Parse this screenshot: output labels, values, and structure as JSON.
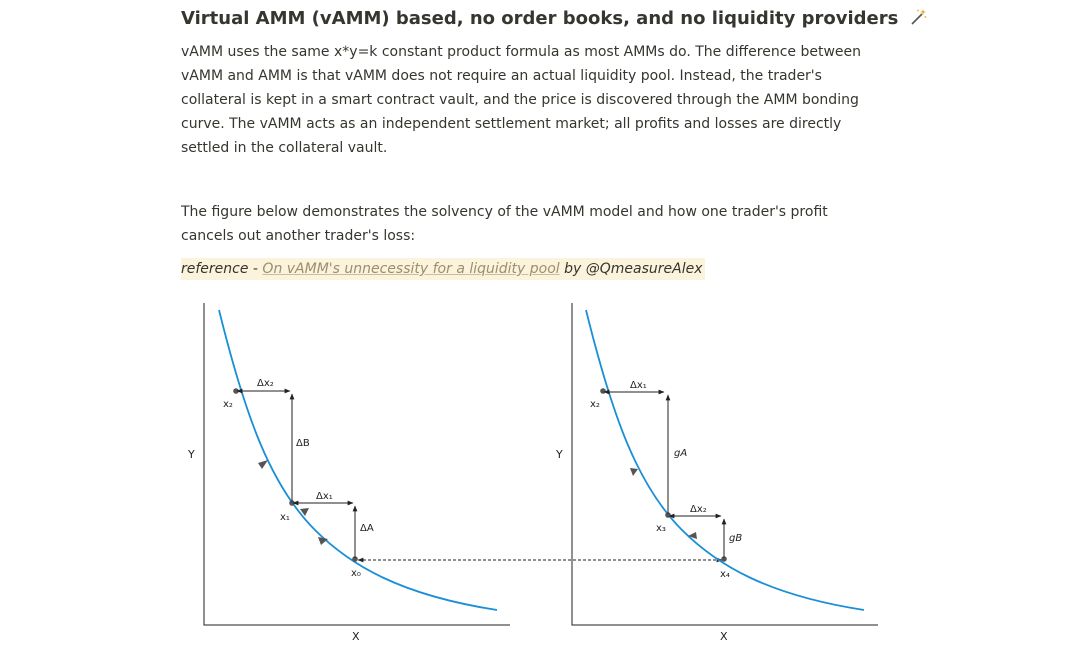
{
  "heading": {
    "title": "Virtual AMM (vAMM) based, no order books, and no liquidity providers",
    "emoji_icon": "magic-wand-icon"
  },
  "paragraph1": "vAMM uses the same x*y=k constant product formula as most AMMs do. The difference between vAMM and AMM is that vAMM does not require an actual liquidity pool. Instead, the trader's collateral is kept in a smart contract vault, and the price is discovered through the AMM bonding curve. The vAMM acts as an independent settlement market; all profits and losses are directly settled in the collateral vault.",
  "paragraph2": "The figure below demonstrates the solvency of the vAMM model and how one trader's profit cancels out another trader's loss:",
  "reference": {
    "prefix": "reference - ",
    "link_text": "On vAMM's unnecessity for a liquidity pool",
    "suffix": " by @QmeasureAlex"
  },
  "figure": {
    "left_panel": {
      "y_axis_label": "Y",
      "x_axis_label": "X",
      "labels": {
        "dx2": "Δx₂",
        "x2": "x₂",
        "dB": "ΔB",
        "dx1": "Δx₁",
        "x1": "x₁",
        "dA": "ΔA",
        "x0": "x₀"
      }
    },
    "right_panel": {
      "y_axis_label": "Y",
      "x_axis_label": "X",
      "labels": {
        "dx1": "Δx₁",
        "x2": "x₂",
        "gA": "gA",
        "dx2": "Δx₂",
        "x3": "x₃",
        "gB": "gB",
        "x4": "x₄"
      }
    },
    "colors": {
      "curve": "#1a8fd6",
      "axis": "#222222"
    }
  }
}
